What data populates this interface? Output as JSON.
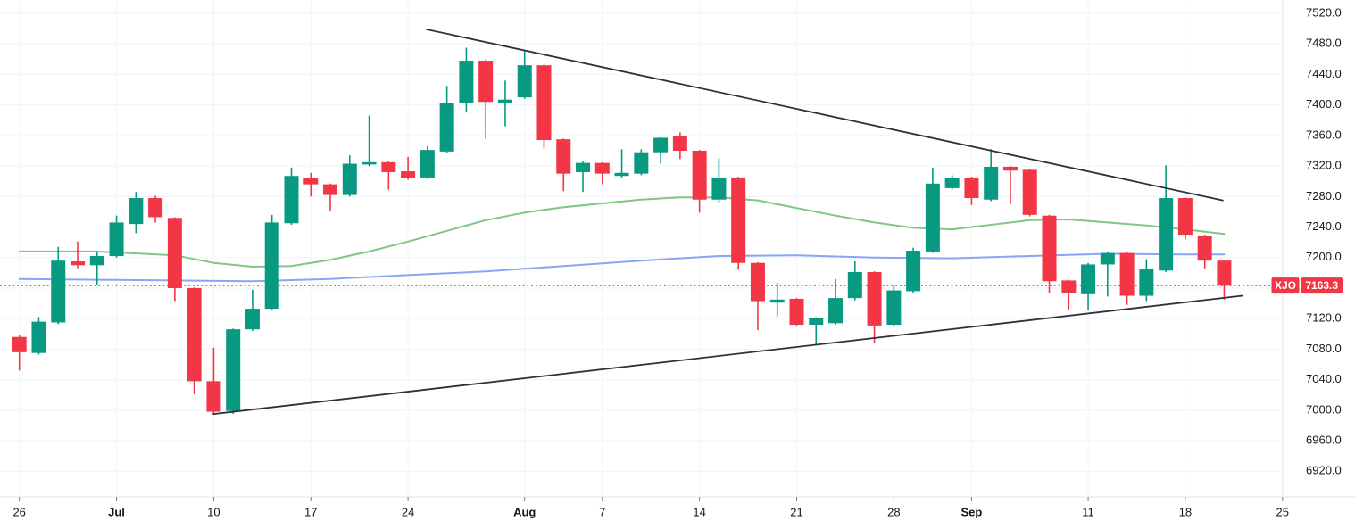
{
  "chart": {
    "colors": {
      "up": "#089981",
      "down": "#f23645",
      "ma_fast": "#80c685",
      "ma_slow": "#87a6f5",
      "trendline": "#2e3138",
      "grid": "#f0f3fa",
      "axis_border": "#e0e3eb",
      "label": "#131722",
      "tick": "#787b86",
      "price_line": "#f23645",
      "badge_bg": "#f23645",
      "badge_text": "#ffffff"
    }
  },
  "chart_data": {
    "type": "candlestick",
    "symbol": "XJO",
    "last_price": 7163.3,
    "last_price_label": "7163.3",
    "y_axis": {
      "min": 6920,
      "max": 7520,
      "step": 40,
      "decimals": 1
    },
    "x_axis": {
      "labels": [
        {
          "text": "26",
          "index": 0,
          "month": false
        },
        {
          "text": "Jul",
          "index": 5,
          "month": true
        },
        {
          "text": "10",
          "index": 10,
          "month": false
        },
        {
          "text": "17",
          "index": 15,
          "month": false
        },
        {
          "text": "24",
          "index": 20,
          "month": false
        },
        {
          "text": "Aug",
          "index": 26,
          "month": true
        },
        {
          "text": "7",
          "index": 30,
          "month": false
        },
        {
          "text": "14",
          "index": 35,
          "month": false
        },
        {
          "text": "21",
          "index": 40,
          "month": false
        },
        {
          "text": "28",
          "index": 45,
          "month": false
        },
        {
          "text": "Sep",
          "index": 49,
          "month": true
        },
        {
          "text": "11",
          "index": 55,
          "month": false
        },
        {
          "text": "18",
          "index": 60,
          "month": false
        },
        {
          "text": "25",
          "index": 65,
          "month": false
        }
      ]
    },
    "candles": [
      [
        "Jun 26",
        7096,
        7098,
        7052,
        7076
      ],
      [
        "Jun 27",
        7075,
        7122,
        7073,
        7116
      ],
      [
        "Jun 28",
        7115,
        7214,
        7113,
        7196
      ],
      [
        "Jun 29",
        7195,
        7221,
        7186,
        7190
      ],
      [
        "Jun 30",
        7190,
        7207,
        7164,
        7202
      ],
      [
        "Jul 3",
        7202,
        7255,
        7200,
        7246
      ],
      [
        "Jul 4",
        7244,
        7286,
        7232,
        7278
      ],
      [
        "Jul 5",
        7278,
        7281,
        7246,
        7253
      ],
      [
        "Jul 6",
        7252,
        7253,
        7143,
        7160
      ],
      [
        "Jul 7",
        7160,
        7161,
        7021,
        7038
      ],
      [
        "Jul 10",
        7038,
        7082,
        6994,
        6998
      ],
      [
        "Jul 11",
        6999,
        7107,
        6995,
        7106
      ],
      [
        "Jul 12",
        7106,
        7158,
        7104,
        7133
      ],
      [
        "Jul 13",
        7133,
        7256,
        7131,
        7246
      ],
      [
        "Jul 14",
        7245,
        7318,
        7243,
        7307
      ],
      [
        "Jul 17",
        7304,
        7311,
        7280,
        7296
      ],
      [
        "Jul 18",
        7296,
        7297,
        7261,
        7282
      ],
      [
        "Jul 19",
        7282,
        7334,
        7280,
        7323
      ],
      [
        "Jul 20",
        7322,
        7386,
        7320,
        7325
      ],
      [
        "Jul 21",
        7325,
        7326,
        7289,
        7312
      ],
      [
        "Jul 24",
        7313,
        7332,
        7302,
        7304
      ],
      [
        "Jul 25",
        7305,
        7346,
        7303,
        7341
      ],
      [
        "Jul 26",
        7339,
        7425,
        7337,
        7403
      ],
      [
        "Jul 27",
        7403,
        7475,
        7390,
        7458
      ],
      [
        "Jul 28",
        7458,
        7460,
        7356,
        7404
      ],
      [
        "Jul 31",
        7402,
        7432,
        7372,
        7407
      ],
      [
        "Aug 1",
        7410,
        7472,
        7408,
        7452
      ],
      [
        "Aug 2",
        7452,
        7453,
        7343,
        7354
      ],
      [
        "Aug 3",
        7355,
        7356,
        7287,
        7310
      ],
      [
        "Aug 4",
        7312,
        7326,
        7286,
        7324
      ],
      [
        "Aug 7",
        7324,
        7325,
        7296,
        7310
      ],
      [
        "Aug 8",
        7307,
        7342,
        7305,
        7311
      ],
      [
        "Aug 9",
        7310,
        7342,
        7308,
        7338
      ],
      [
        "Aug 10",
        7338,
        7358,
        7323,
        7357
      ],
      [
        "Aug 11",
        7359,
        7364,
        7329,
        7340
      ],
      [
        "Aug 14",
        7340,
        7341,
        7259,
        7276
      ],
      [
        "Aug 15",
        7276,
        7330,
        7271,
        7305
      ],
      [
        "Aug 16",
        7305,
        7306,
        7184,
        7193
      ],
      [
        "Aug 17",
        7193,
        7194,
        7105,
        7143
      ],
      [
        "Aug 18",
        7141,
        7167,
        7123,
        7145
      ],
      [
        "Aug 21",
        7146,
        7147,
        7111,
        7112
      ],
      [
        "Aug 22",
        7112,
        7122,
        7085,
        7121
      ],
      [
        "Aug 23",
        7114,
        7172,
        7112,
        7147
      ],
      [
        "Aug 24",
        7147,
        7195,
        7144,
        7181
      ],
      [
        "Aug 25",
        7181,
        7182,
        7088,
        7111
      ],
      [
        "Aug 28",
        7112,
        7163,
        7109,
        7157
      ],
      [
        "Aug 29",
        7156,
        7213,
        7154,
        7209
      ],
      [
        "Aug 30",
        7208,
        7318,
        7206,
        7297
      ],
      [
        "Aug 31",
        7291,
        7308,
        7289,
        7305
      ],
      [
        "Sep 1",
        7305,
        7306,
        7269,
        7278
      ],
      [
        "Sep 4",
        7276,
        7342,
        7274,
        7319
      ],
      [
        "Sep 5",
        7319,
        7320,
        7270,
        7314
      ],
      [
        "Sep 6",
        7315,
        7316,
        7254,
        7256
      ],
      [
        "Sep 7",
        7255,
        7256,
        7154,
        7169
      ],
      [
        "Sep 8",
        7170,
        7171,
        7132,
        7154
      ],
      [
        "Sep 11",
        7152,
        7193,
        7131,
        7191
      ],
      [
        "Sep 12",
        7191,
        7208,
        7149,
        7206
      ],
      [
        "Sep 13",
        7206,
        7207,
        7138,
        7150
      ],
      [
        "Sep 14",
        7150,
        7198,
        7143,
        7185
      ],
      [
        "Sep 15",
        7183,
        7321,
        7181,
        7278
      ],
      [
        "Sep 18",
        7278,
        7279,
        7224,
        7230
      ],
      [
        "Sep 19",
        7229,
        7230,
        7186,
        7196
      ],
      [
        "Sep 20",
        7196,
        7197,
        7145,
        7163.3
      ]
    ],
    "ma_fast": {
      "name": "ma-20-green",
      "points": [
        [
          0,
          7208
        ],
        [
          4,
          7208
        ],
        [
          8,
          7203
        ],
        [
          10,
          7193
        ],
        [
          12,
          7188
        ],
        [
          14,
          7189
        ],
        [
          16,
          7197
        ],
        [
          18,
          7208
        ],
        [
          20,
          7221
        ],
        [
          22,
          7235
        ],
        [
          24,
          7249
        ],
        [
          26,
          7259
        ],
        [
          28,
          7266
        ],
        [
          30,
          7271
        ],
        [
          32,
          7276
        ],
        [
          34,
          7279
        ],
        [
          36,
          7279
        ],
        [
          38,
          7275
        ],
        [
          40,
          7265
        ],
        [
          42,
          7255
        ],
        [
          44,
          7246
        ],
        [
          46,
          7239
        ],
        [
          48,
          7237
        ],
        [
          50,
          7243
        ],
        [
          52,
          7249
        ],
        [
          54,
          7250
        ],
        [
          56,
          7246
        ],
        [
          58,
          7242
        ],
        [
          60,
          7237
        ],
        [
          62,
          7231
        ]
      ]
    },
    "ma_slow": {
      "name": "ma-50-blue",
      "points": [
        [
          0,
          7172
        ],
        [
          4,
          7171
        ],
        [
          8,
          7170
        ],
        [
          12,
          7169
        ],
        [
          16,
          7172
        ],
        [
          20,
          7177
        ],
        [
          24,
          7182
        ],
        [
          28,
          7189
        ],
        [
          32,
          7196
        ],
        [
          36,
          7202
        ],
        [
          40,
          7203
        ],
        [
          44,
          7200
        ],
        [
          48,
          7199
        ],
        [
          52,
          7202
        ],
        [
          56,
          7205
        ],
        [
          60,
          7204
        ],
        [
          62,
          7204
        ]
      ]
    },
    "trendlines": [
      {
        "name": "upper-descending",
        "i1": 20.96,
        "p1": 7499,
        "i2": 61.93,
        "p2": 7275
      },
      {
        "name": "lower-ascending",
        "i1": 9.98,
        "p1": 6995,
        "i2": 62.94,
        "p2": 7150
      }
    ]
  }
}
